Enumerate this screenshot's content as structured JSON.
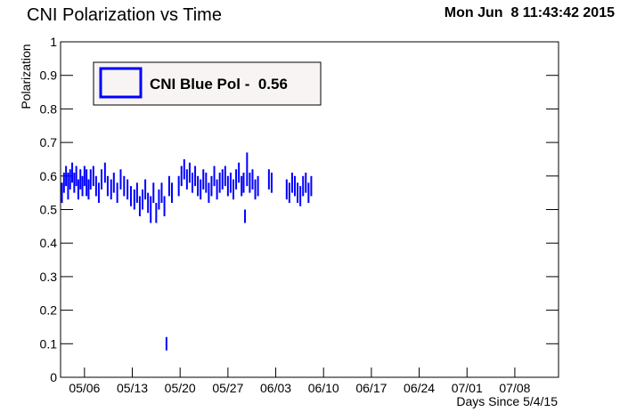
{
  "chart_data": {
    "type": "errorbar",
    "title": "CNI Polarization vs Time",
    "timestamp": "Mon Jun  8 11:43:42 2015",
    "x_label": "Days Since 5/4/15",
    "y_label": "Polarization",
    "xlim": [
      -1.5,
      71.4
    ],
    "xticks": [
      {
        "value": 2,
        "label": "05/06"
      },
      {
        "value": 9,
        "label": "05/13"
      },
      {
        "value": 16,
        "label": "05/20"
      },
      {
        "value": 23,
        "label": "05/27"
      },
      {
        "value": 30,
        "label": "06/03"
      },
      {
        "value": 37,
        "label": "06/10"
      },
      {
        "value": 44,
        "label": "06/17"
      },
      {
        "value": 51,
        "label": "06/24"
      },
      {
        "value": 58,
        "label": "07/01"
      },
      {
        "value": 65,
        "label": "07/08"
      }
    ],
    "ylim": [
      0,
      1
    ],
    "yticks": [
      0,
      0.1,
      0.2,
      0.3,
      0.4,
      0.5,
      0.6,
      0.7,
      0.8,
      0.9,
      1
    ],
    "series": [
      {
        "name": "CNI Blue Pol -  0.56",
        "color": "#0000ff",
        "x": [
          -1.3,
          -1.0,
          -0.7,
          -0.4,
          -0.1,
          0.2,
          0.5,
          0.8,
          1.1,
          1.4,
          1.7,
          2.0,
          2.3,
          2.6,
          2.9,
          3.3,
          3.7,
          4.1,
          4.5,
          5.0,
          5.4,
          5.9,
          6.3,
          6.8,
          7.3,
          7.8,
          8.3,
          8.8,
          9.3,
          9.7,
          10.1,
          10.5,
          10.9,
          11.3,
          11.7,
          12.1,
          12.5,
          12.9,
          13.3,
          13.7,
          14.0,
          14.4,
          14.8,
          15.8,
          16.2,
          16.6,
          17.0,
          17.4,
          17.8,
          18.2,
          18.6,
          19.0,
          19.4,
          19.8,
          20.2,
          20.6,
          21.0,
          21.4,
          21.8,
          22.2,
          22.6,
          23.0,
          23.4,
          23.8,
          24.2,
          24.6,
          25.0,
          25.3,
          25.5,
          25.8,
          26.2,
          26.6,
          27.0,
          27.4,
          29.0,
          29.4,
          31.6,
          32.0,
          32.4,
          32.8,
          33.2,
          33.6,
          34.0,
          34.4,
          34.8,
          35.2
        ],
        "values": [
          0.55,
          0.58,
          0.6,
          0.57,
          0.59,
          0.61,
          0.58,
          0.6,
          0.56,
          0.59,
          0.57,
          0.6,
          0.58,
          0.56,
          0.59,
          0.6,
          0.57,
          0.55,
          0.59,
          0.61,
          0.57,
          0.56,
          0.58,
          0.55,
          0.59,
          0.57,
          0.56,
          0.54,
          0.53,
          0.55,
          0.51,
          0.53,
          0.56,
          0.52,
          0.5,
          0.55,
          0.49,
          0.53,
          0.55,
          0.51,
          0.1,
          0.57,
          0.55,
          0.57,
          0.6,
          0.62,
          0.59,
          0.61,
          0.58,
          0.6,
          0.57,
          0.56,
          0.59,
          0.58,
          0.55,
          0.57,
          0.6,
          0.56,
          0.58,
          0.59,
          0.6,
          0.57,
          0.58,
          0.56,
          0.59,
          0.61,
          0.57,
          0.58,
          0.48,
          0.62,
          0.58,
          0.59,
          0.56,
          0.57,
          0.59,
          0.58,
          0.56,
          0.55,
          0.58,
          0.57,
          0.55,
          0.54,
          0.57,
          0.58,
          0.55,
          0.57
        ],
        "errors": [
          0.03,
          0.03,
          0.03,
          0.04,
          0.03,
          0.03,
          0.03,
          0.03,
          0.03,
          0.03,
          0.03,
          0.03,
          0.04,
          0.03,
          0.03,
          0.03,
          0.03,
          0.03,
          0.03,
          0.03,
          0.03,
          0.03,
          0.03,
          0.03,
          0.03,
          0.03,
          0.03,
          0.03,
          0.03,
          0.03,
          0.03,
          0.03,
          0.03,
          0.03,
          0.04,
          0.03,
          0.03,
          0.03,
          0.03,
          0.03,
          0.02,
          0.03,
          0.03,
          0.03,
          0.03,
          0.03,
          0.03,
          0.03,
          0.03,
          0.03,
          0.03,
          0.03,
          0.03,
          0.03,
          0.03,
          0.03,
          0.03,
          0.03,
          0.03,
          0.03,
          0.03,
          0.03,
          0.03,
          0.03,
          0.03,
          0.03,
          0.03,
          0.03,
          0.02,
          0.05,
          0.03,
          0.03,
          0.03,
          0.03,
          0.03,
          0.03,
          0.03,
          0.03,
          0.03,
          0.03,
          0.03,
          0.03,
          0.03,
          0.03,
          0.03,
          0.03
        ]
      }
    ]
  }
}
